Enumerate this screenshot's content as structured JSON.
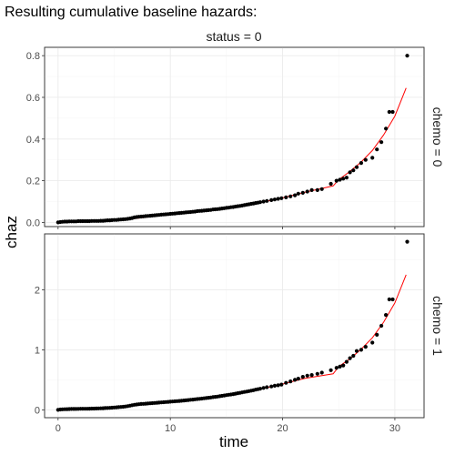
{
  "title": "Resulting cumulative baseline hazards:",
  "chart_data": {
    "type": "scatter",
    "title": "Resulting cumulative baseline hazards:",
    "xlabel": "time",
    "ylabel": "chaz",
    "xlim": [
      -1.2,
      32.6
    ],
    "x_ticks": [
      0,
      10,
      20,
      30
    ],
    "column_strip": "status = 0",
    "grid": true,
    "panels": [
      {
        "strip": "chemo = 0",
        "ylim": [
          -0.02,
          0.84
        ],
        "y_ticks": [
          0.0,
          0.2,
          0.4,
          0.6,
          0.8
        ],
        "y_tick_labels": [
          "0.0",
          "0.2",
          "0.4",
          "0.6",
          "0.8"
        ],
        "points": [
          [
            0,
            0
          ],
          [
            0.2,
            0.002
          ],
          [
            0.4,
            0.003
          ],
          [
            0.6,
            0.004
          ],
          [
            0.8,
            0.004
          ],
          [
            1,
            0.005
          ],
          [
            1.2,
            0.005
          ],
          [
            1.4,
            0.005
          ],
          [
            1.6,
            0.005
          ],
          [
            1.8,
            0.006
          ],
          [
            2,
            0.006
          ],
          [
            2.2,
            0.006
          ],
          [
            2.4,
            0.006
          ],
          [
            2.6,
            0.006
          ],
          [
            2.8,
            0.006
          ],
          [
            3,
            0.007
          ],
          [
            3.2,
            0.007
          ],
          [
            3.4,
            0.007
          ],
          [
            3.6,
            0.007
          ],
          [
            3.8,
            0.008
          ],
          [
            4,
            0.008
          ],
          [
            4.2,
            0.009
          ],
          [
            4.4,
            0.01
          ],
          [
            4.6,
            0.01
          ],
          [
            4.8,
            0.011
          ],
          [
            5,
            0.012
          ],
          [
            5.2,
            0.012
          ],
          [
            5.4,
            0.013
          ],
          [
            5.6,
            0.014
          ],
          [
            5.8,
            0.015
          ],
          [
            6,
            0.016
          ],
          [
            6.2,
            0.017
          ],
          [
            6.4,
            0.019
          ],
          [
            6.6,
            0.021
          ],
          [
            6.8,
            0.024
          ],
          [
            7,
            0.026
          ],
          [
            7.2,
            0.027
          ],
          [
            7.4,
            0.028
          ],
          [
            7.6,
            0.029
          ],
          [
            7.8,
            0.03
          ],
          [
            8,
            0.031
          ],
          [
            8.2,
            0.032
          ],
          [
            8.4,
            0.033
          ],
          [
            8.6,
            0.034
          ],
          [
            8.8,
            0.035
          ],
          [
            9,
            0.036
          ],
          [
            9.2,
            0.037
          ],
          [
            9.4,
            0.038
          ],
          [
            9.6,
            0.039
          ],
          [
            9.8,
            0.04
          ],
          [
            10,
            0.041
          ],
          [
            10.2,
            0.042
          ],
          [
            10.4,
            0.043
          ],
          [
            10.6,
            0.044
          ],
          [
            10.8,
            0.045
          ],
          [
            11,
            0.046
          ],
          [
            11.2,
            0.047
          ],
          [
            11.4,
            0.048
          ],
          [
            11.6,
            0.049
          ],
          [
            11.8,
            0.05
          ],
          [
            12,
            0.051
          ],
          [
            12.2,
            0.052
          ],
          [
            12.4,
            0.054
          ],
          [
            12.6,
            0.055
          ],
          [
            12.8,
            0.056
          ],
          [
            13,
            0.057
          ],
          [
            13.2,
            0.058
          ],
          [
            13.4,
            0.059
          ],
          [
            13.6,
            0.06
          ],
          [
            13.8,
            0.062
          ],
          [
            14,
            0.063
          ],
          [
            14.2,
            0.064
          ],
          [
            14.4,
            0.065
          ],
          [
            14.6,
            0.067
          ],
          [
            14.8,
            0.068
          ],
          [
            15,
            0.07
          ],
          [
            15.2,
            0.071
          ],
          [
            15.4,
            0.073
          ],
          [
            15.6,
            0.074
          ],
          [
            15.8,
            0.076
          ],
          [
            16,
            0.078
          ],
          [
            16.2,
            0.079
          ],
          [
            16.4,
            0.081
          ],
          [
            16.6,
            0.083
          ],
          [
            16.8,
            0.085
          ],
          [
            17,
            0.087
          ],
          [
            17.2,
            0.089
          ],
          [
            17.4,
            0.091
          ],
          [
            17.6,
            0.093
          ],
          [
            17.8,
            0.095
          ],
          [
            18,
            0.097
          ],
          [
            18.3,
            0.1
          ],
          [
            18.6,
            0.103
          ],
          [
            19,
            0.107
          ],
          [
            19.3,
            0.11
          ],
          [
            19.6,
            0.113
          ],
          [
            19.9,
            0.116
          ],
          [
            20.3,
            0.12
          ],
          [
            20.7,
            0.125
          ],
          [
            21.1,
            0.13
          ],
          [
            21.4,
            0.138
          ],
          [
            21.8,
            0.142
          ],
          [
            22.2,
            0.148
          ],
          [
            22.6,
            0.155
          ],
          [
            23.1,
            0.155
          ],
          [
            23.5,
            0.16
          ],
          [
            24.3,
            0.185
          ],
          [
            24.8,
            0.2
          ],
          [
            25.1,
            0.205
          ],
          [
            25.4,
            0.21
          ],
          [
            25.7,
            0.215
          ],
          [
            26,
            0.24
          ],
          [
            26.3,
            0.25
          ],
          [
            26.6,
            0.265
          ],
          [
            27,
            0.285
          ],
          [
            27.4,
            0.3
          ],
          [
            28,
            0.31
          ],
          [
            28.4,
            0.35
          ],
          [
            28.8,
            0.385
          ],
          [
            29.2,
            0.45
          ],
          [
            29.5,
            0.53
          ],
          [
            29.8,
            0.53
          ],
          [
            31.1,
            0.8
          ]
        ],
        "fit": [
          [
            0,
            0
          ],
          [
            2,
            0.003
          ],
          [
            4,
            0.006
          ],
          [
            6,
            0.013
          ],
          [
            8,
            0.026
          ],
          [
            10,
            0.04
          ],
          [
            12,
            0.05
          ],
          [
            14,
            0.062
          ],
          [
            16,
            0.077
          ],
          [
            18,
            0.095
          ],
          [
            20,
            0.118
          ],
          [
            22,
            0.145
          ],
          [
            24.5,
            0.175
          ],
          [
            25,
            0.205
          ],
          [
            26,
            0.245
          ],
          [
            27,
            0.29
          ],
          [
            28,
            0.345
          ],
          [
            29,
            0.42
          ],
          [
            30,
            0.51
          ],
          [
            31,
            0.645
          ]
        ]
      },
      {
        "strip": "chemo = 1",
        "ylim": [
          -0.13,
          2.93
        ],
        "y_ticks": [
          0,
          1,
          2
        ],
        "y_tick_labels": [
          "0",
          "1",
          "2"
        ],
        "points": [
          [
            0,
            0
          ],
          [
            0.2,
            0.006
          ],
          [
            0.4,
            0.009
          ],
          [
            0.6,
            0.011
          ],
          [
            0.8,
            0.013
          ],
          [
            1,
            0.014
          ],
          [
            1.2,
            0.015
          ],
          [
            1.4,
            0.016
          ],
          [
            1.6,
            0.016
          ],
          [
            1.8,
            0.017
          ],
          [
            2,
            0.018
          ],
          [
            2.2,
            0.018
          ],
          [
            2.4,
            0.019
          ],
          [
            2.6,
            0.019
          ],
          [
            2.8,
            0.02
          ],
          [
            3,
            0.021
          ],
          [
            3.2,
            0.022
          ],
          [
            3.4,
            0.023
          ],
          [
            3.6,
            0.024
          ],
          [
            3.8,
            0.026
          ],
          [
            4,
            0.028
          ],
          [
            4.2,
            0.03
          ],
          [
            4.4,
            0.032
          ],
          [
            4.6,
            0.034
          ],
          [
            4.8,
            0.037
          ],
          [
            5,
            0.04
          ],
          [
            5.2,
            0.042
          ],
          [
            5.4,
            0.045
          ],
          [
            5.6,
            0.048
          ],
          [
            5.8,
            0.052
          ],
          [
            6,
            0.056
          ],
          [
            6.2,
            0.062
          ],
          [
            6.4,
            0.07
          ],
          [
            6.6,
            0.078
          ],
          [
            6.8,
            0.085
          ],
          [
            7,
            0.09
          ],
          [
            7.2,
            0.094
          ],
          [
            7.4,
            0.098
          ],
          [
            7.6,
            0.101
          ],
          [
            7.8,
            0.104
          ],
          [
            8,
            0.107
          ],
          [
            8.2,
            0.11
          ],
          [
            8.4,
            0.113
          ],
          [
            8.6,
            0.116
          ],
          [
            8.8,
            0.119
          ],
          [
            9,
            0.122
          ],
          [
            9.2,
            0.125
          ],
          [
            9.4,
            0.128
          ],
          [
            9.6,
            0.131
          ],
          [
            9.8,
            0.134
          ],
          [
            10,
            0.137
          ],
          [
            10.2,
            0.14
          ],
          [
            10.4,
            0.143
          ],
          [
            10.6,
            0.146
          ],
          [
            10.8,
            0.149
          ],
          [
            11,
            0.152
          ],
          [
            11.2,
            0.156
          ],
          [
            11.4,
            0.16
          ],
          [
            11.6,
            0.164
          ],
          [
            11.8,
            0.168
          ],
          [
            12,
            0.172
          ],
          [
            12.2,
            0.176
          ],
          [
            12.4,
            0.18
          ],
          [
            12.6,
            0.184
          ],
          [
            12.8,
            0.188
          ],
          [
            13,
            0.192
          ],
          [
            13.2,
            0.197
          ],
          [
            13.4,
            0.202
          ],
          [
            13.6,
            0.207
          ],
          [
            13.8,
            0.212
          ],
          [
            14,
            0.217
          ],
          [
            14.2,
            0.222
          ],
          [
            14.4,
            0.227
          ],
          [
            14.6,
            0.233
          ],
          [
            14.8,
            0.239
          ],
          [
            15,
            0.245
          ],
          [
            15.2,
            0.251
          ],
          [
            15.4,
            0.257
          ],
          [
            15.6,
            0.263
          ],
          [
            15.8,
            0.27
          ],
          [
            16,
            0.277
          ],
          [
            16.2,
            0.284
          ],
          [
            16.4,
            0.291
          ],
          [
            16.6,
            0.298
          ],
          [
            16.8,
            0.305
          ],
          [
            17,
            0.312
          ],
          [
            17.2,
            0.32
          ],
          [
            17.4,
            0.328
          ],
          [
            17.6,
            0.336
          ],
          [
            17.8,
            0.344
          ],
          [
            18,
            0.352
          ],
          [
            18.3,
            0.365
          ],
          [
            18.6,
            0.378
          ],
          [
            19,
            0.39
          ],
          [
            19.3,
            0.402
          ],
          [
            19.6,
            0.41
          ],
          [
            19.9,
            0.422
          ],
          [
            20.3,
            0.45
          ],
          [
            20.7,
            0.475
          ],
          [
            21.1,
            0.5
          ],
          [
            21.4,
            0.52
          ],
          [
            21.8,
            0.55
          ],
          [
            22.2,
            0.57
          ],
          [
            22.6,
            0.58
          ],
          [
            23.1,
            0.6
          ],
          [
            23.5,
            0.62
          ],
          [
            24.3,
            0.66
          ],
          [
            24.8,
            0.7
          ],
          [
            25.1,
            0.72
          ],
          [
            25.4,
            0.74
          ],
          [
            25.7,
            0.8
          ],
          [
            26,
            0.86
          ],
          [
            26.3,
            0.9
          ],
          [
            26.6,
            0.98
          ],
          [
            27,
            1.0
          ],
          [
            27.4,
            1.05
          ],
          [
            28,
            1.12
          ],
          [
            28.4,
            1.25
          ],
          [
            28.8,
            1.4
          ],
          [
            29.2,
            1.58
          ],
          [
            29.5,
            1.84
          ],
          [
            29.8,
            1.84
          ],
          [
            31.1,
            2.8
          ]
        ],
        "fit": [
          [
            0,
            0
          ],
          [
            2,
            0.015
          ],
          [
            4,
            0.028
          ],
          [
            6,
            0.06
          ],
          [
            8,
            0.105
          ],
          [
            10,
            0.135
          ],
          [
            12,
            0.172
          ],
          [
            14,
            0.218
          ],
          [
            16,
            0.272
          ],
          [
            18,
            0.345
          ],
          [
            20,
            0.43
          ],
          [
            22,
            0.525
          ],
          [
            24.5,
            0.6
          ],
          [
            25,
            0.72
          ],
          [
            26,
            0.85
          ],
          [
            27,
            1.01
          ],
          [
            28,
            1.2
          ],
          [
            29,
            1.46
          ],
          [
            30,
            1.78
          ],
          [
            31,
            2.25
          ]
        ]
      }
    ]
  }
}
